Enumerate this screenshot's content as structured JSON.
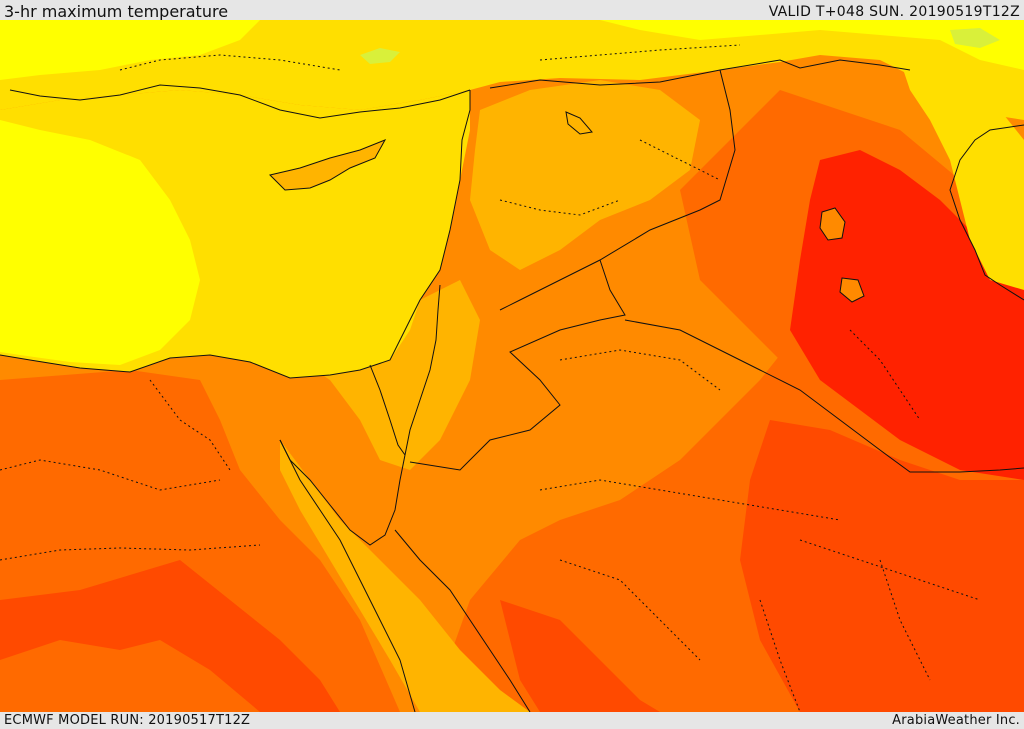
{
  "header": {
    "title": "3-hr maximum temperature",
    "valid": "VALID T+048 SUN. 20190519T12Z"
  },
  "footer": {
    "model_run": "ECMWF MODEL RUN: 20190517T12Z",
    "credit": "ArabiaWeather Inc."
  },
  "map": {
    "field": "3-hr maximum temperature",
    "colors": {
      "yellow_green": "#d9f03a",
      "yellow": "#ffff00",
      "gold": "#ffdf00",
      "light_orange": "#ffb400",
      "orange": "#ff8a00",
      "dark_orange": "#ff6a00",
      "red_orange": "#ff4a00",
      "red": "#ff2200",
      "boundary": "#111111"
    }
  }
}
